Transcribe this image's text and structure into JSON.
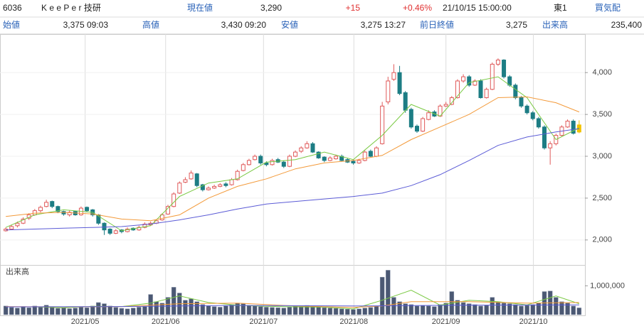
{
  "header": {
    "code": "6036",
    "name": "K e e P e r 技研",
    "current_label": "現在値",
    "current": "3,290",
    "change": "+15",
    "change_pct": "+0.46%",
    "datetime": "21/10/15 15:00:00",
    "market": "東1",
    "quote_label": "買気配"
  },
  "summary": [
    {
      "label": "始値",
      "value": "3,375 09:03"
    },
    {
      "label": "高値",
      "value": "3,430 09:20"
    },
    {
      "label": "安値",
      "value": "3,275 13:27"
    },
    {
      "label": "前日終値",
      "value": "3,275"
    },
    {
      "label": "出来高",
      "value": "235,400"
    }
  ],
  "chart_data": [
    {
      "type": "candlestick",
      "up_color": "#e05a5a",
      "down_color": "#1d7d84",
      "last_color": "#f2c200",
      "xlim": [
        -1,
        100
      ],
      "ylim": [
        1710,
        4460
      ],
      "xticks": [
        {
          "value": 13.7,
          "label": "2021/05"
        },
        {
          "value": 27.6,
          "label": "2021/06"
        },
        {
          "value": 44.5,
          "label": "2021/07"
        },
        {
          "value": 60.1,
          "label": "2021/08"
        },
        {
          "value": 76,
          "label": "2021/09"
        },
        {
          "value": 91.1,
          "label": "2021/10"
        }
      ],
      "yticks": [
        {
          "value": 2000,
          "label": "2,000"
        },
        {
          "value": 2500,
          "label": "2,500"
        },
        {
          "value": 3000,
          "label": "3,000"
        },
        {
          "value": 3500,
          "label": "3,500"
        },
        {
          "value": 4000,
          "label": "4,000"
        }
      ],
      "open": [
        2110,
        2130,
        2170,
        2200,
        2260,
        2300,
        2350,
        2400,
        2460,
        2400,
        2340,
        2300,
        2340,
        2300,
        2390,
        2360,
        2300,
        2200,
        2130,
        2080,
        2120,
        2100,
        2140,
        2120,
        2150,
        2180,
        2200,
        2240,
        2310,
        2400,
        2560,
        2690,
        2730,
        2790,
        2660,
        2600,
        2620,
        2640,
        2670,
        2660,
        2720,
        2830,
        2900,
        2960,
        3000,
        2920,
        2900,
        2960,
        2930,
        2880,
        3000,
        3060,
        3100,
        3150,
        3050,
        2990,
        2950,
        2970,
        3000,
        2960,
        2940,
        2920,
        2950,
        3060,
        3000,
        3150,
        3650,
        3920,
        4000,
        3760,
        3560,
        3360,
        3300,
        3440,
        3530,
        3480,
        3600,
        3620,
        3700,
        3900,
        3950,
        3850,
        3900,
        3700,
        3800,
        4100,
        4150,
        3950,
        3850,
        3700,
        3600,
        3520,
        3450,
        3350,
        3100,
        3150,
        3250,
        3350,
        3420,
        3375
      ],
      "high": [
        2150,
        2180,
        2220,
        2270,
        2320,
        2370,
        2410,
        2480,
        2470,
        2410,
        2350,
        2350,
        2350,
        2400,
        2400,
        2370,
        2310,
        2210,
        2140,
        2130,
        2130,
        2150,
        2150,
        2170,
        2210,
        2220,
        2250,
        2320,
        2420,
        2570,
        2700,
        2750,
        2830,
        2800,
        2670,
        2640,
        2660,
        2680,
        2690,
        2740,
        2840,
        2920,
        2970,
        3020,
        3020,
        2940,
        2970,
        2980,
        2950,
        3020,
        3070,
        3120,
        3180,
        3170,
        3060,
        3000,
        3000,
        3020,
        3020,
        2980,
        2960,
        2970,
        3070,
        3080,
        3120,
        3650,
        3950,
        4100,
        4080,
        3780,
        3580,
        3380,
        3470,
        3550,
        3550,
        3620,
        3650,
        3720,
        3920,
        3980,
        3970,
        3920,
        3920,
        3820,
        4120,
        4170,
        4160,
        3970,
        3870,
        3720,
        3620,
        3540,
        3470,
        3370,
        3180,
        3270,
        3370,
        3440,
        3440,
        3430
      ],
      "low": [
        2100,
        2120,
        2150,
        2190,
        2240,
        2290,
        2330,
        2390,
        2380,
        2320,
        2290,
        2280,
        2290,
        2290,
        2330,
        2280,
        2180,
        2060,
        2060,
        2070,
        2080,
        2090,
        2110,
        2110,
        2140,
        2170,
        2190,
        2230,
        2300,
        2390,
        2550,
        2680,
        2720,
        2630,
        2580,
        2590,
        2610,
        2630,
        2630,
        2650,
        2710,
        2820,
        2890,
        2950,
        2900,
        2880,
        2890,
        2920,
        2860,
        2870,
        2990,
        3040,
        3090,
        3040,
        2970,
        2930,
        2940,
        2960,
        2940,
        2920,
        2900,
        2910,
        2940,
        2990,
        2990,
        3140,
        3620,
        3900,
        3730,
        3520,
        3330,
        3280,
        3290,
        3430,
        3470,
        3470,
        3590,
        3610,
        3690,
        3880,
        3830,
        3840,
        3690,
        3690,
        3790,
        4080,
        3930,
        3830,
        3680,
        3580,
        3500,
        3430,
        3330,
        3080,
        2900,
        3130,
        3240,
        3340,
        3260,
        3275
      ],
      "close": [
        2130,
        2160,
        2200,
        2250,
        2300,
        2350,
        2390,
        2450,
        2400,
        2340,
        2310,
        2330,
        2300,
        2380,
        2350,
        2300,
        2200,
        2120,
        2080,
        2110,
        2100,
        2130,
        2120,
        2150,
        2190,
        2200,
        2230,
        2300,
        2400,
        2550,
        2680,
        2720,
        2800,
        2650,
        2600,
        2620,
        2640,
        2660,
        2650,
        2720,
        2820,
        2900,
        2950,
        3000,
        2920,
        2900,
        2950,
        2930,
        2880,
        3000,
        3050,
        3100,
        3150,
        3050,
        2980,
        2950,
        2980,
        3000,
        2950,
        2930,
        2920,
        2950,
        3050,
        3000,
        3100,
        3600,
        3900,
        4000,
        3750,
        3550,
        3350,
        3300,
        3450,
        3520,
        3480,
        3600,
        3620,
        3700,
        3900,
        3950,
        3850,
        3900,
        3700,
        3800,
        4100,
        4150,
        3950,
        3850,
        3700,
        3600,
        3520,
        3450,
        3350,
        3100,
        3150,
        3250,
        3350,
        3420,
        3275,
        3290
      ],
      "lines": [
        {
          "color": "#7ac943",
          "x": [
            0,
            5,
            10,
            15,
            20,
            25,
            30,
            35,
            40,
            45,
            50,
            55,
            60,
            65,
            70,
            75,
            80,
            85,
            90,
            95,
            99
          ],
          "values": [
            2150,
            2300,
            2360,
            2330,
            2110,
            2170,
            2520,
            2680,
            2730,
            2930,
            2960,
            3050,
            2960,
            3250,
            3620,
            3480,
            3880,
            3950,
            3700,
            3200,
            3340
          ]
        },
        {
          "color": "#f39a3a",
          "x": [
            0,
            5,
            10,
            15,
            20,
            25,
            30,
            35,
            40,
            45,
            50,
            55,
            60,
            65,
            70,
            75,
            80,
            85,
            90,
            95,
            99
          ],
          "values": [
            2280,
            2320,
            2330,
            2310,
            2250,
            2230,
            2300,
            2500,
            2640,
            2730,
            2850,
            2920,
            2950,
            3010,
            3200,
            3350,
            3500,
            3700,
            3710,
            3640,
            3530
          ]
        },
        {
          "color": "#5b5bd6",
          "x": [
            0,
            5,
            10,
            15,
            20,
            25,
            30,
            35,
            40,
            45,
            50,
            55,
            60,
            65,
            70,
            75,
            80,
            85,
            90,
            95,
            99
          ],
          "values": [
            2120,
            2130,
            2140,
            2150,
            2160,
            2190,
            2240,
            2300,
            2370,
            2430,
            2460,
            2490,
            2520,
            2560,
            2650,
            2780,
            2950,
            3130,
            3230,
            3290,
            3330
          ]
        }
      ]
    },
    {
      "type": "bar",
      "title": "出来高",
      "color": "#4b5873",
      "xlim": [
        -1,
        100
      ],
      "ylim": [
        0,
        1600000
      ],
      "yticks": [
        {
          "value": 1000000,
          "label": "1,000,000"
        }
      ],
      "values": [
        300000,
        250000,
        230000,
        280000,
        240000,
        300000,
        260000,
        330000,
        280000,
        220000,
        240000,
        210000,
        230000,
        260000,
        240000,
        300000,
        420000,
        380000,
        300000,
        250000,
        220000,
        200000,
        230000,
        260000,
        280000,
        700000,
        450000,
        400000,
        600000,
        950000,
        750000,
        500000,
        550000,
        450000,
        350000,
        300000,
        280000,
        260000,
        300000,
        350000,
        400000,
        380000,
        320000,
        300000,
        280000,
        260000,
        250000,
        240000,
        230000,
        260000,
        300000,
        280000,
        320000,
        300000,
        260000,
        240000,
        230000,
        220000,
        200000,
        190000,
        180000,
        200000,
        230000,
        250000,
        300000,
        1300000,
        1540000,
        600000,
        450000,
        380000,
        350000,
        300000,
        320000,
        300000,
        280000,
        350000,
        400000,
        800000,
        500000,
        420000,
        380000,
        350000,
        300000,
        320000,
        600000,
        450000,
        400000,
        380000,
        350000,
        300000,
        320000,
        350000,
        400000,
        800000,
        820000,
        600000,
        450000,
        400000,
        300000,
        235400
      ],
      "lines": [
        {
          "color": "#7ac943",
          "x": [
            0,
            5,
            10,
            15,
            20,
            25,
            30,
            35,
            40,
            45,
            50,
            55,
            60,
            65,
            70,
            75,
            80,
            85,
            90,
            95,
            99
          ],
          "values": [
            270000,
            270000,
            240000,
            290000,
            280000,
            400000,
            650000,
            420000,
            330000,
            290000,
            270000,
            260000,
            200000,
            500000,
            850000,
            330000,
            500000,
            450000,
            340000,
            650000,
            380000
          ]
        },
        {
          "color": "#f39a3a",
          "x": [
            0,
            10,
            20,
            30,
            40,
            50,
            60,
            65,
            70,
            80,
            90,
            99
          ],
          "values": [
            280000,
            270000,
            280000,
            380000,
            400000,
            300000,
            250000,
            300000,
            450000,
            450000,
            400000,
            420000
          ]
        },
        {
          "color": "#5b5bd6",
          "x": [
            0,
            20,
            40,
            60,
            80,
            99
          ],
          "values": [
            270000,
            280000,
            320000,
            300000,
            330000,
            340000
          ]
        }
      ]
    }
  ]
}
